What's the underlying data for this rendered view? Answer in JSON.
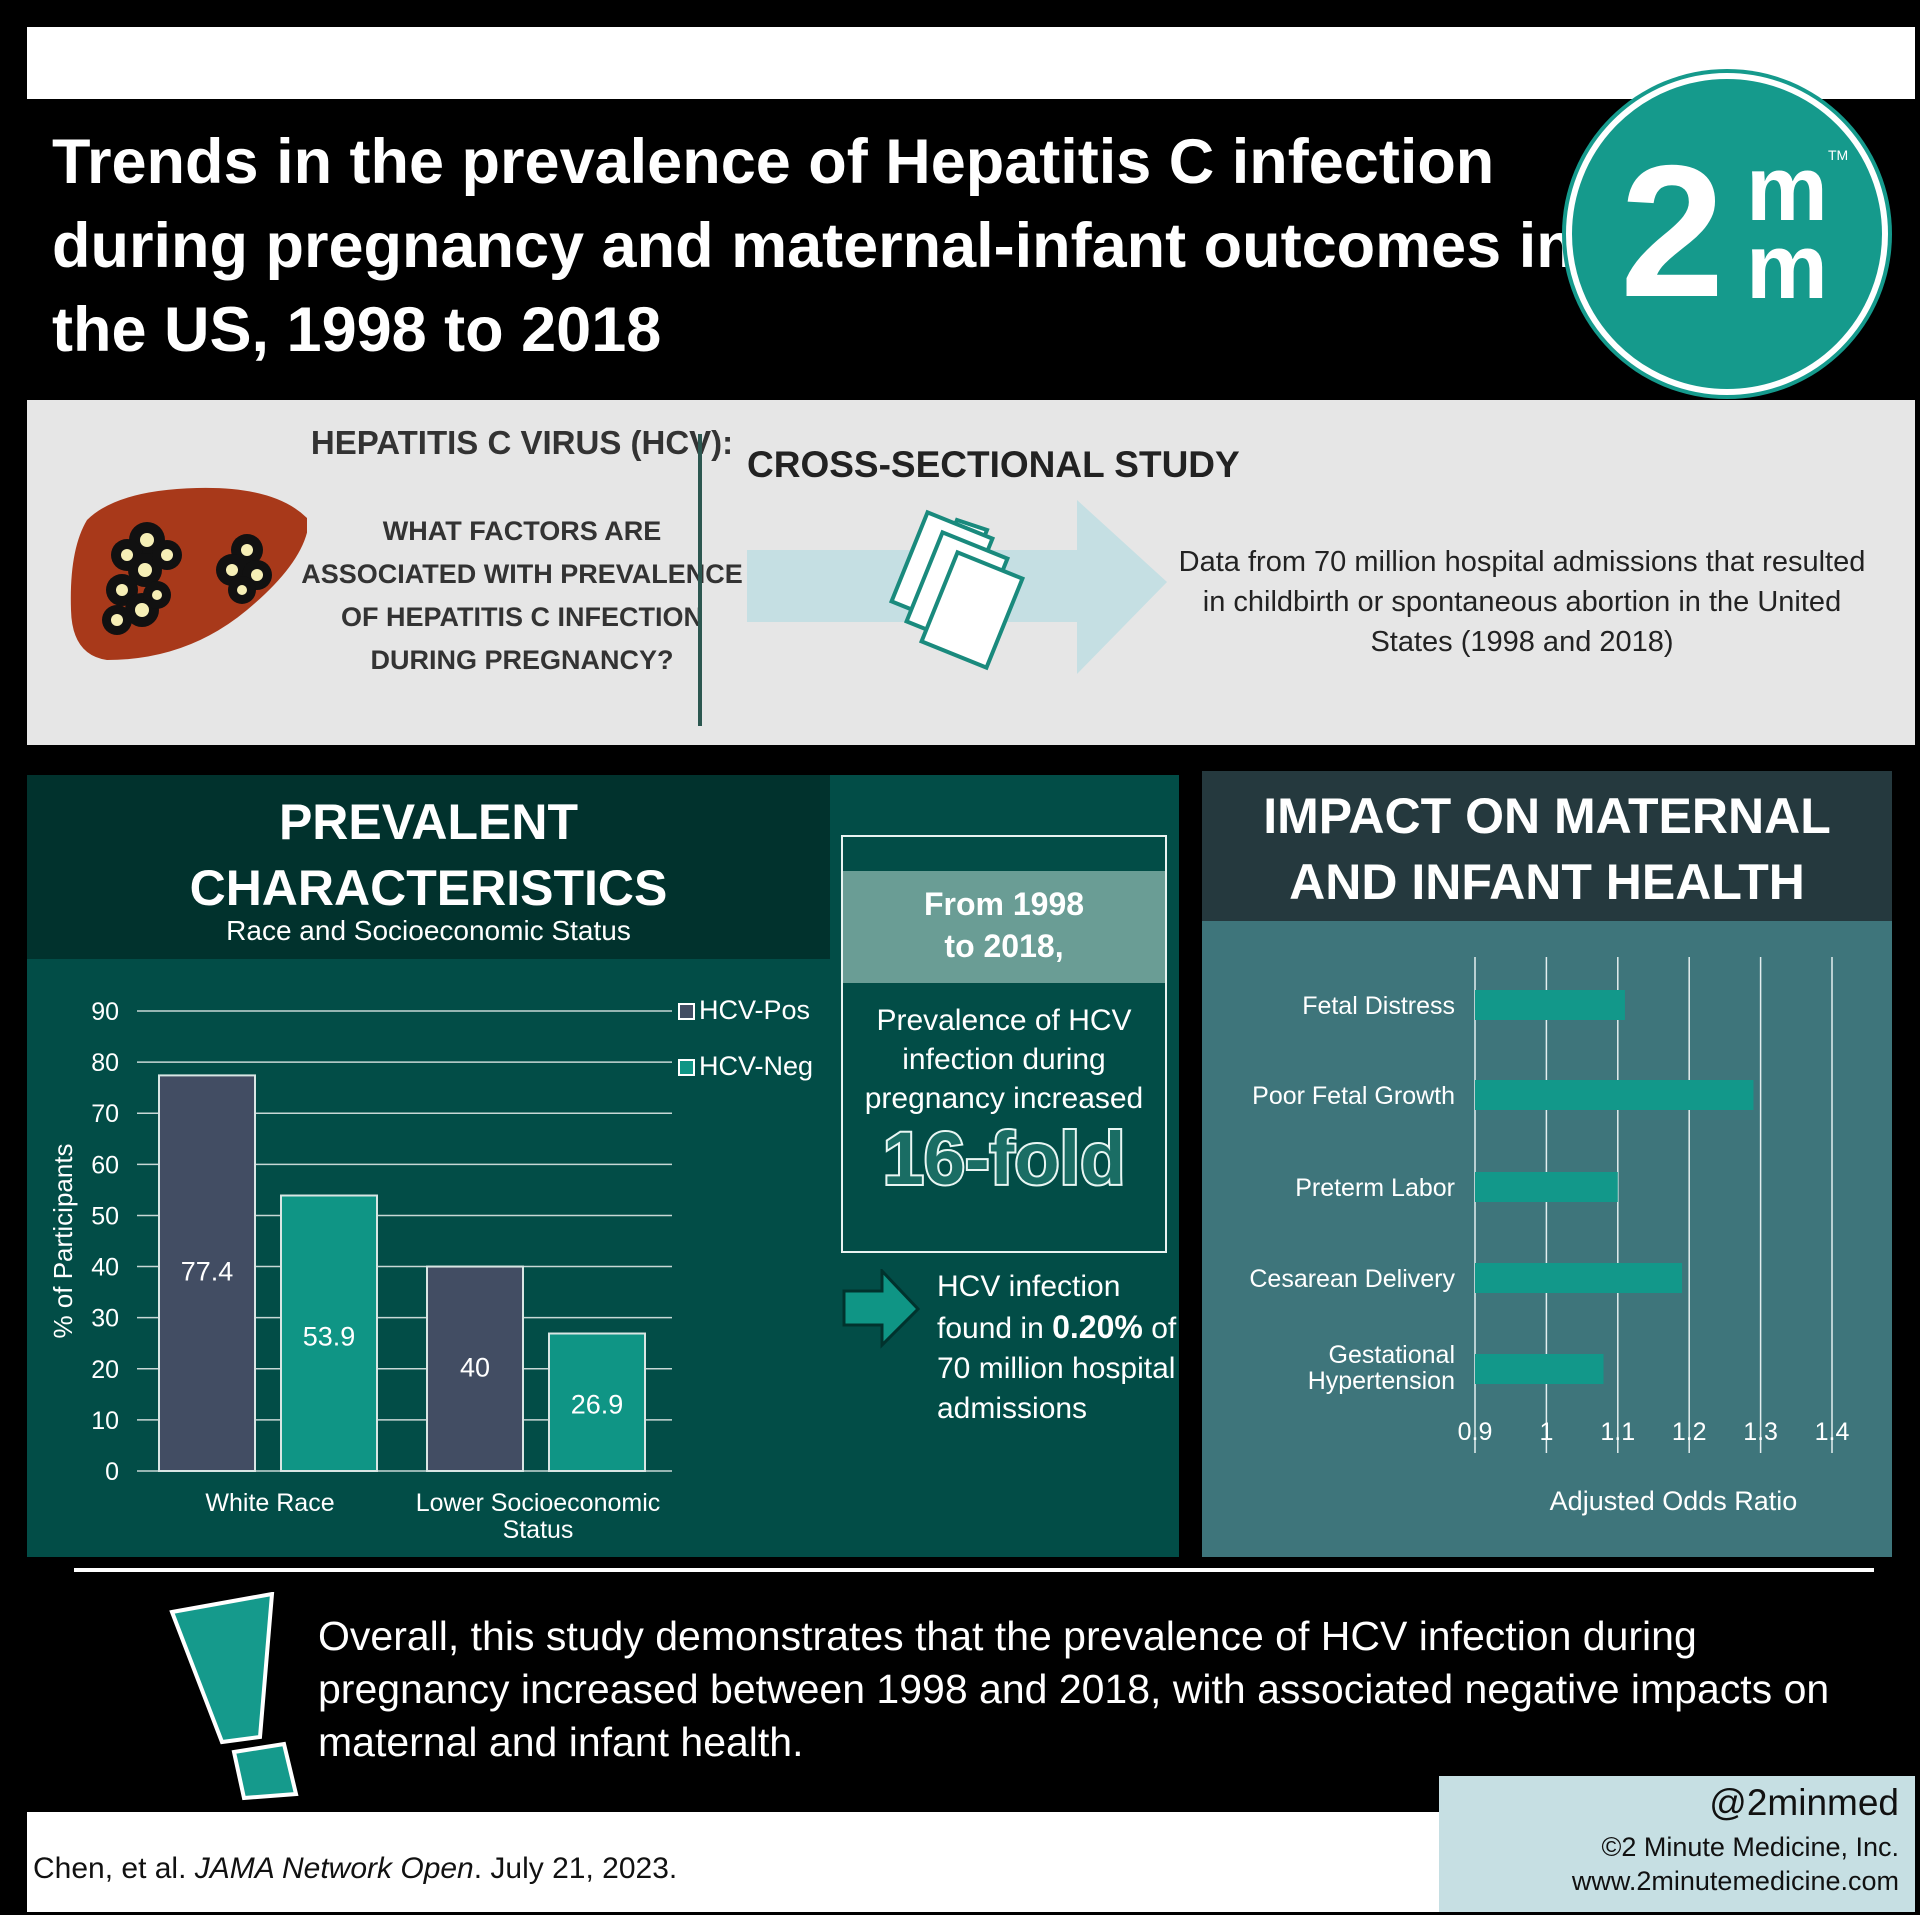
{
  "title": "Trends in the prevalence of Hepatitis C infection during pregnancy and maternal-infant outcomes in the US, 1998 to 2018",
  "logo": {
    "digit": "2",
    "letter1": "m",
    "letter2": "m",
    "tm": "TM"
  },
  "question": {
    "heading": "HEPATITIS C VIRUS (HCV):",
    "body": "WHAT FACTORS ARE ASSOCIATED WITH PREVALENCE OF HEPATITIS C INFECTION DURING PREGNANCY?"
  },
  "study": {
    "heading": "CROSS-SECTIONAL STUDY",
    "description": "Data from 70 million hospital admissions that resulted in childbirth or spontaneous abortion in the United States (1998 and 2018)"
  },
  "prevalent": {
    "title_line1": "PREVALENT",
    "title_line2": "CHARACTERISTICS",
    "subtitle": "Race and Socioeconomic Status"
  },
  "fold": {
    "period_line1": "From 1998",
    "period_line2": "to 2018,",
    "description": "Prevalence of HCV infection during pregnancy increased",
    "big": "16-fold"
  },
  "infection": {
    "pre": "HCV infection found in",
    "highlight": "0.20%",
    "post": "of 70 million hospital admissions"
  },
  "impact": {
    "title_line1": "IMPACT ON MATERNAL",
    "title_line2": "AND INFANT HEALTH"
  },
  "conclusion": "Overall, this study demonstrates that the prevalence of HCV infection during pregnancy increased between 1998 and 2018, with associated negative impacts on maternal and infant health.",
  "footer": {
    "citation_authors": "Chen, et al. ",
    "citation_journal": "JAMA Network Open",
    "citation_date": ". July 21, 2023.",
    "handle": "@2minmed",
    "copyright": "©2 Minute Medicine, Inc.",
    "website": "www.2minutemedicine.com"
  },
  "colors": {
    "hcv_pos": "#424d63",
    "hcv_neg": "#0f9585",
    "accent": "#159a8c"
  },
  "chart_data": [
    {
      "type": "bar",
      "categories": [
        "White Race",
        "Lower Socioeconomic Status"
      ],
      "series": [
        {
          "name": "HCV-Pos",
          "values": [
            77.4,
            40
          ]
        },
        {
          "name": "HCV-Neg",
          "values": [
            53.9,
            26.9
          ]
        }
      ],
      "ylabel": "% of Participants",
      "ylim": [
        0,
        90
      ],
      "yticks": [
        0,
        10,
        20,
        30,
        40,
        50,
        60,
        70,
        80,
        90
      ],
      "grid": true,
      "legend": "top-right"
    },
    {
      "type": "bar",
      "orientation": "horizontal",
      "categories": [
        "Fetal Distress",
        "Poor Fetal Growth",
        "Preterm Labor",
        "Cesarean Delivery",
        "Gestational Hypertension"
      ],
      "values": [
        1.11,
        1.29,
        1.1,
        1.19,
        1.08
      ],
      "xlabel": "Adjusted Odds Ratio",
      "xlim": [
        0.9,
        1.4
      ],
      "xticks": [
        "0.9",
        "1",
        "1.1",
        "1.2",
        "1.3",
        "1.4"
      ],
      "grid": true
    }
  ]
}
